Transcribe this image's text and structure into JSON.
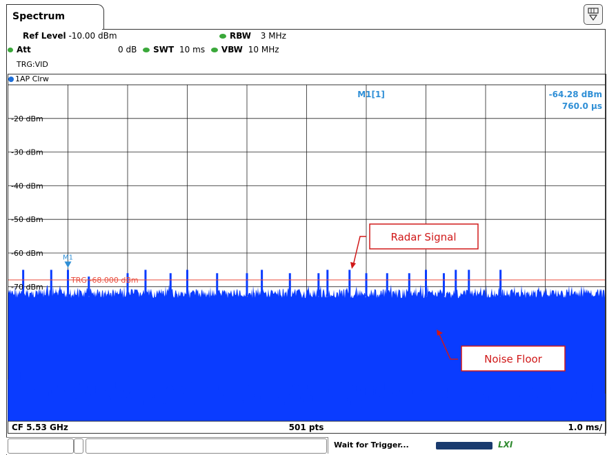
{
  "tab": {
    "label": "Spectrum"
  },
  "settings": {
    "ref_level_label": "Ref Level",
    "ref_level_value": "-10.00 dBm",
    "att_label": "Att",
    "att_value": "0 dB",
    "swt_label": "SWT",
    "swt_value": "10 ms",
    "rbw_label": "RBW",
    "rbw_value": "3 MHz",
    "vbw_label": "VBW",
    "vbw_value": "10 MHz",
    "trigger": "TRG:VID"
  },
  "trace": {
    "label": "1AP Clrw"
  },
  "marker": {
    "name": "M1",
    "readout_label": "M1[1]",
    "readout_level": "-64.28 dBm",
    "readout_time": "760.0 µs"
  },
  "trigger_line": {
    "label": "TRG -68.000 dBm",
    "level_dbm": -68
  },
  "footer": {
    "center_freq": "CF 5.53 GHz",
    "points": "501 pts",
    "div": "1.0 ms/"
  },
  "status": {
    "text": "Wait for Trigger...",
    "logo": "LXI"
  },
  "annotations": {
    "radar": "Radar Signal",
    "noise": "Noise Floor"
  },
  "chart_data": {
    "type": "line",
    "xlabel": "",
    "ylabel": "",
    "y_tick_labels": [
      "-20 dBm",
      "-30 dBm",
      "-40 dBm",
      "-50 dBm",
      "-60 dBm",
      "-70 dBm"
    ],
    "y_ticks": [
      -20,
      -30,
      -40,
      -50,
      -60,
      -70
    ],
    "ylim": [
      -10,
      -110
    ],
    "xlim_ms": [
      0,
      10
    ],
    "pulse_times_ms": [
      0.25,
      0.72,
      1.0,
      1.35,
      2.0,
      2.3,
      2.72,
      3.0,
      3.5,
      4.0,
      4.25,
      4.72,
      5.2,
      5.35,
      5.72,
      6.0,
      6.35,
      6.72,
      7.0,
      7.3,
      7.5,
      7.72,
      8.25
    ],
    "pulse_levels_dbm": [
      -65,
      -65,
      -65,
      -67,
      -66,
      -65,
      -66,
      -65,
      -66,
      -66,
      -65,
      -66,
      -66,
      -65,
      -65,
      -66,
      -66,
      -66,
      -65,
      -66,
      -65,
      -65,
      -65
    ],
    "noise_top_dbm": -72,
    "grid": true
  }
}
